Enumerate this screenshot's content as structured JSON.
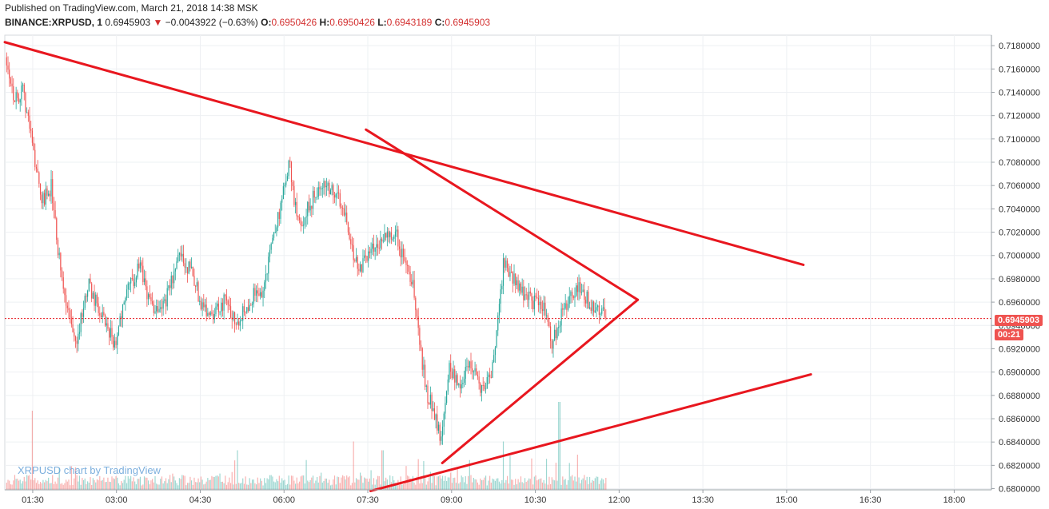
{
  "header": {
    "published": "Published on TradingView.com, March 21, 2018 14:38 MSK",
    "symbol": "BINANCE:XRPUSD, 1",
    "last": "0.6945903",
    "arrow": "▼",
    "change": "−0.0043922 (−0.63%)",
    "o_label": "O:",
    "o_value": "0.6950426",
    "h_label": "H:",
    "h_value": "0.6950426",
    "l_label": "L:",
    "l_value": "0.6943189",
    "c_label": "C:",
    "c_value": "0.6945903"
  },
  "watermark": "XRPUSD chart by TradingView",
  "price_tag": "0.6945903",
  "countdown_tag": "00:21",
  "colors": {
    "up": "#26a69a",
    "down": "#ef5350",
    "trend": "#e8171f",
    "grid": "#eef0f3"
  },
  "chart_data": {
    "type": "candlestick",
    "xlabels": [
      "01:30",
      "03:00",
      "04:30",
      "06:00",
      "07:30",
      "09:00",
      "10:30",
      "12:00",
      "13:30",
      "15:00",
      "16:30",
      "18:00"
    ],
    "ylabels": [
      "0.7180000",
      "0.7160000",
      "0.7140000",
      "0.7120000",
      "0.7100000",
      "0.7080000",
      "0.7060000",
      "0.7040000",
      "0.7020000",
      "0.7000000",
      "0.6980000",
      "0.6960000",
      "0.6940000",
      "0.6920000",
      "0.6900000",
      "0.6880000",
      "0.6860000",
      "0.6840000",
      "0.6820000",
      "0.6800000"
    ],
    "ylim": [
      0.6799,
      0.7189
    ],
    "x_range_minutes": [
      60,
      1120
    ],
    "last_price": 0.6945903,
    "price_path": [
      [
        62,
        0.717
      ],
      [
        70,
        0.7135
      ],
      [
        80,
        0.714
      ],
      [
        92,
        0.7085
      ],
      [
        100,
        0.7045
      ],
      [
        110,
        0.706
      ],
      [
        116,
        0.701
      ],
      [
        125,
        0.696
      ],
      [
        136,
        0.6925
      ],
      [
        150,
        0.6975
      ],
      [
        165,
        0.6945
      ],
      [
        178,
        0.6925
      ],
      [
        190,
        0.6965
      ],
      [
        205,
        0.699
      ],
      [
        218,
        0.6955
      ],
      [
        232,
        0.696
      ],
      [
        248,
        0.7
      ],
      [
        262,
        0.6985
      ],
      [
        270,
        0.696
      ],
      [
        282,
        0.695
      ],
      [
        296,
        0.696
      ],
      [
        310,
        0.6945
      ],
      [
        326,
        0.6965
      ],
      [
        338,
        0.697
      ],
      [
        346,
        0.701
      ],
      [
        356,
        0.704
      ],
      [
        366,
        0.708
      ],
      [
        372,
        0.704
      ],
      [
        380,
        0.703
      ],
      [
        392,
        0.705
      ],
      [
        404,
        0.706
      ],
      [
        415,
        0.7055
      ],
      [
        426,
        0.7035
      ],
      [
        438,
        0.699
      ],
      [
        448,
        0.6995
      ],
      [
        460,
        0.701
      ],
      [
        472,
        0.702
      ],
      [
        482,
        0.7015
      ],
      [
        490,
        0.699
      ],
      [
        498,
        0.698
      ],
      [
        506,
        0.692
      ],
      [
        514,
        0.688
      ],
      [
        522,
        0.6865
      ],
      [
        528,
        0.6845
      ],
      [
        538,
        0.6905
      ],
      [
        548,
        0.689
      ],
      [
        560,
        0.6905
      ],
      [
        572,
        0.6885
      ],
      [
        582,
        0.6895
      ],
      [
        590,
        0.6945
      ],
      [
        596,
        0.6995
      ],
      [
        604,
        0.6985
      ],
      [
        615,
        0.697
      ],
      [
        628,
        0.696
      ],
      [
        640,
        0.6955
      ],
      [
        648,
        0.6925
      ],
      [
        656,
        0.6945
      ],
      [
        666,
        0.696
      ],
      [
        676,
        0.6975
      ],
      [
        686,
        0.6962
      ],
      [
        696,
        0.6955
      ],
      [
        706,
        0.6946
      ]
    ],
    "volume_spikes": [
      [
        90,
        0.9
      ],
      [
        310,
        0.45
      ],
      [
        435,
        0.55
      ],
      [
        466,
        0.45
      ],
      [
        596,
        0.55
      ],
      [
        656,
        1.0
      ],
      [
        675,
        0.4
      ]
    ],
    "trendlines": [
      {
        "name": "upper-resistance",
        "from": [
          60,
          0.7183
        ],
        "to": [
          918,
          0.6992
        ]
      },
      {
        "name": "wedge-top",
        "from": [
          448,
          0.7108
        ],
        "to": [
          740,
          0.6962
        ]
      },
      {
        "name": "wedge-bottom",
        "from": [
          530,
          0.6822
        ],
        "to": [
          740,
          0.6962
        ]
      },
      {
        "name": "lower-support",
        "from": [
          453,
          0.6798
        ],
        "to": [
          926,
          0.6898
        ]
      }
    ]
  }
}
